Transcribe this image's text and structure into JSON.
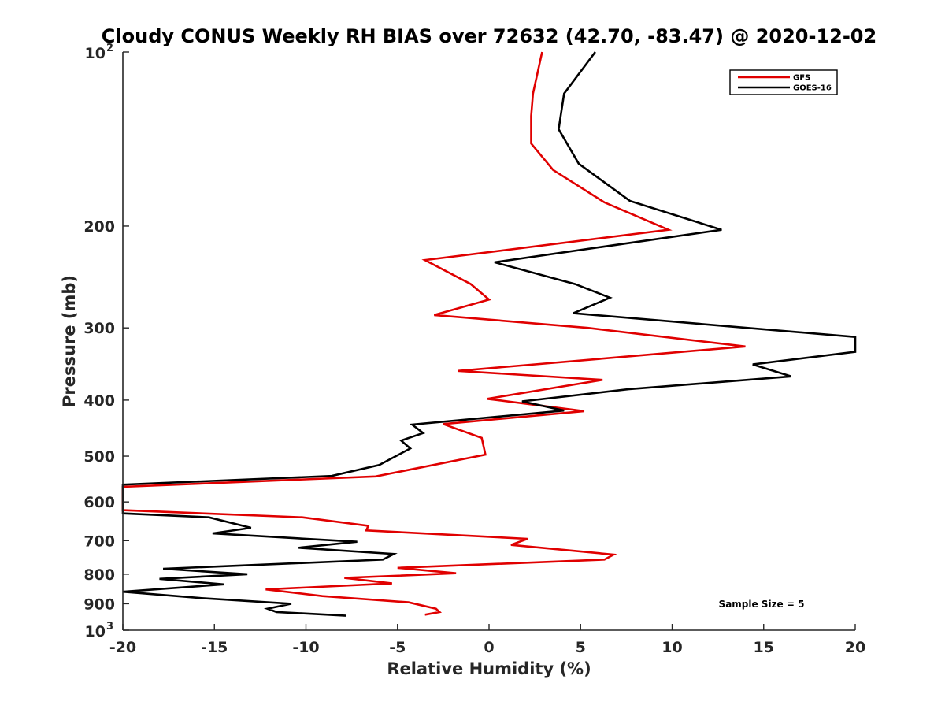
{
  "chart_data": {
    "type": "line",
    "title": "Cloudy CONUS Weekly RH BIAS over 72632 (42.70, -83.47) @ 2020-12-02",
    "xlabel": "Relative Humidity (%)",
    "ylabel": "Pressure (mb)",
    "xlim": [
      -20,
      20
    ],
    "ylim": [
      100,
      1000
    ],
    "y_scale": "log",
    "y_reversed": true,
    "grid": false,
    "legend_position": "top-right",
    "x_ticks": [
      "-20",
      "-15",
      "-10",
      "-5",
      "0",
      "5",
      "10",
      "15",
      "20"
    ],
    "y_ticks": [
      {
        "value": 100,
        "base": "10",
        "exp": "2"
      },
      {
        "value": 200,
        "label": "200"
      },
      {
        "value": 300,
        "label": "300"
      },
      {
        "value": 400,
        "label": "400"
      },
      {
        "value": 500,
        "label": "500"
      },
      {
        "value": 600,
        "label": "600"
      },
      {
        "value": 700,
        "label": "700"
      },
      {
        "value": 800,
        "label": "800"
      },
      {
        "value": 900,
        "label": "900"
      },
      {
        "value": 1000,
        "base": "10",
        "exp": "3"
      }
    ],
    "annotation": "Sample Size = 5",
    "series": [
      {
        "name": "GFS",
        "color": "#e00000",
        "points": [
          [
            2.9,
            100
          ],
          [
            2.4,
            118
          ],
          [
            2.3,
            129
          ],
          [
            2.3,
            144
          ],
          [
            3.5,
            160
          ],
          [
            6.3,
            182
          ],
          [
            9.8,
            203
          ],
          [
            -3.5,
            229
          ],
          [
            -1.0,
            252
          ],
          [
            0.0,
            268
          ],
          [
            -3.0,
            285
          ],
          [
            5.4,
            300
          ],
          [
            14.0,
            323
          ],
          [
            -1.7,
            356
          ],
          [
            6.2,
            369
          ],
          [
            -0.1,
            398
          ],
          [
            5.2,
            418
          ],
          [
            -2.5,
            440
          ],
          [
            -0.4,
            465
          ],
          [
            -0.2,
            497
          ],
          [
            -6.2,
            542
          ],
          [
            -20.0,
            565
          ],
          [
            -20.0,
            620
          ],
          [
            -10.2,
            638
          ],
          [
            -6.6,
            660
          ],
          [
            -6.7,
            672
          ],
          [
            2.1,
            695
          ],
          [
            1.2,
            712
          ],
          [
            6.8,
            740
          ],
          [
            6.3,
            755
          ],
          [
            -5.0,
            780
          ],
          [
            -1.8,
            797
          ],
          [
            -7.9,
            812
          ],
          [
            -5.3,
            830
          ],
          [
            -12.2,
            850
          ],
          [
            -9.1,
            873
          ],
          [
            -4.4,
            895
          ],
          [
            -2.9,
            918
          ],
          [
            -2.7,
            930
          ],
          [
            -3.5,
            940
          ]
        ]
      },
      {
        "name": "GOES-16",
        "color": "#000000",
        "points": [
          [
            5.8,
            100
          ],
          [
            4.1,
            118
          ],
          [
            3.8,
            136
          ],
          [
            4.9,
            156
          ],
          [
            7.7,
            181
          ],
          [
            12.7,
            203
          ],
          [
            0.3,
            231
          ],
          [
            4.7,
            252
          ],
          [
            6.6,
            266
          ],
          [
            4.6,
            283
          ],
          [
            20.0,
            311
          ],
          [
            20.0,
            330
          ],
          [
            14.4,
            347
          ],
          [
            16.5,
            364
          ],
          [
            7.6,
            383
          ],
          [
            1.8,
            402
          ],
          [
            4.1,
            417
          ],
          [
            -4.2,
            441
          ],
          [
            -3.6,
            456
          ],
          [
            -4.8,
            470
          ],
          [
            -4.3,
            485
          ],
          [
            -6.0,
            518
          ],
          [
            -8.6,
            541
          ],
          [
            -20.0,
            560
          ],
          [
            -20.0,
            628
          ],
          [
            -15.3,
            638
          ],
          [
            -13.0,
            665
          ],
          [
            -15.1,
            680
          ],
          [
            -7.2,
            703
          ],
          [
            -10.4,
            720
          ],
          [
            -5.2,
            738
          ],
          [
            -5.8,
            755
          ],
          [
            -17.8,
            783
          ],
          [
            -13.2,
            800
          ],
          [
            -18.0,
            815
          ],
          [
            -14.5,
            833
          ],
          [
            -20.0,
            858
          ],
          [
            -15.7,
            880
          ],
          [
            -10.8,
            900
          ],
          [
            -12.1,
            918
          ],
          [
            -11.6,
            930
          ],
          [
            -7.8,
            944
          ]
        ]
      }
    ]
  }
}
